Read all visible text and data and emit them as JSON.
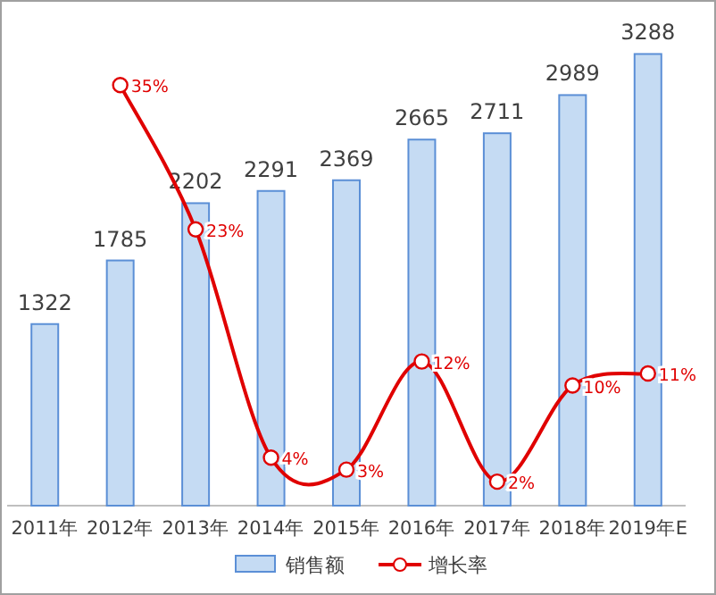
{
  "chart_data": {
    "type": "bar",
    "categories": [
      "2011年",
      "2012年",
      "2013年",
      "2014年",
      "2015年",
      "2016年",
      "2017年",
      "2018年",
      "2019年E"
    ],
    "tick_labels": "x",
    "legend": "bottom",
    "series": [
      {
        "name": "销售额",
        "color": "#c5dbf3",
        "values": [
          1322,
          1785,
          2202,
          2291,
          2369,
          2665,
          2711,
          2989,
          3288
        ],
        "data_labels": true
      },
      {
        "name": "增长率",
        "type": "line",
        "axis": "y2",
        "color": "#e00000",
        "marker": "circle",
        "values": [
          null,
          35,
          23,
          4,
          3,
          12,
          2,
          10,
          11
        ],
        "value_labels": [
          null,
          "35%",
          "23%",
          "4%",
          "3%",
          "12%",
          "2%",
          "10%",
          "11%"
        ]
      }
    ]
  }
}
